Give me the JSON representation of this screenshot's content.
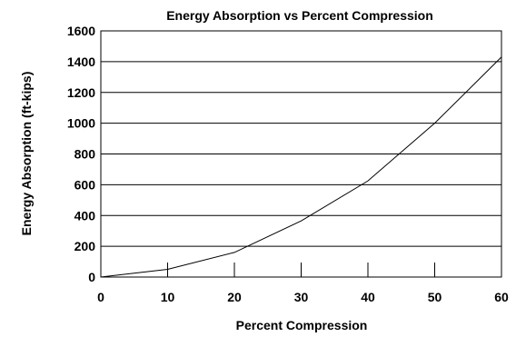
{
  "chart_data": {
    "type": "line",
    "title": "Energy Absorption vs Percent Compression",
    "xlabel": "Percent Compression",
    "ylabel": "Energy Absorption (ft-kips)",
    "xlim": [
      0,
      60
    ],
    "ylim": [
      0,
      1600
    ],
    "x_ticks": [
      0,
      10,
      20,
      30,
      40,
      50,
      60
    ],
    "y_ticks": [
      0,
      200,
      400,
      600,
      800,
      1000,
      1200,
      1400,
      1600
    ],
    "grid": "horizontal",
    "legend": "none",
    "series": [
      {
        "x": [
          0,
          10,
          20,
          30,
          40,
          50,
          60
        ],
        "values": [
          0,
          50,
          160,
          365,
          625,
          1000,
          1430
        ]
      }
    ],
    "colors": {
      "line": "#000000",
      "grid": "#000000",
      "background": "#ffffff"
    }
  }
}
